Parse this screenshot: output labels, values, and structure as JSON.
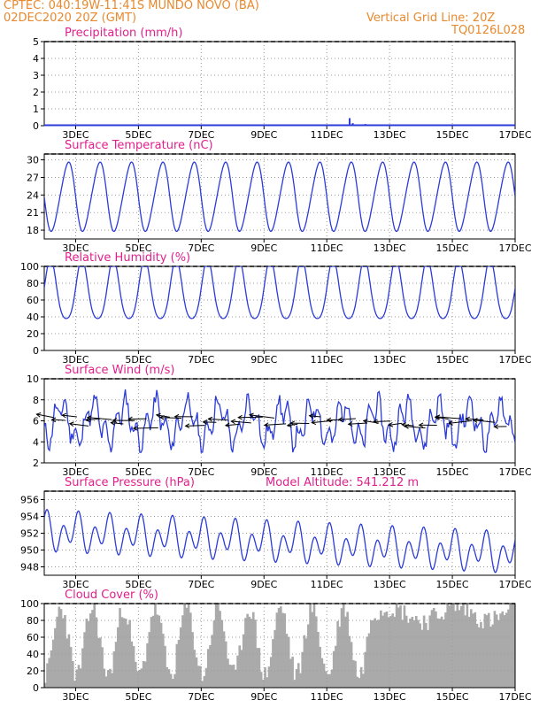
{
  "header": {
    "line1": "CPTEC:   040:19W-11:41S   MUNDO NOVO (BA)",
    "line2": "02DEC2020 20Z (GMT)",
    "grid_note": "Vertical Grid Line: 20Z",
    "code": "TQ0126L028"
  },
  "x_tick_labels": [
    "3DEC",
    "5DEC",
    "7DEC",
    "9DEC",
    "11DEC",
    "13DEC",
    "15DEC",
    "17DEC"
  ],
  "colors": {
    "header": "#e8892e",
    "panel_title": "#e0208c",
    "series": "#2b3bd8",
    "cloud": "#aaaaaa",
    "grid": "#9a9a9a",
    "arrow": "#000000"
  },
  "chart_data": [
    {
      "id": "precip",
      "type": "bar",
      "title": "Precipitation (mm/h)",
      "xlim": [
        0,
        15
      ],
      "ylim": [
        0,
        5
      ],
      "yticks": [
        0,
        1,
        2,
        3,
        4,
        5
      ],
      "bars": [
        [
          9.7,
          0.45
        ],
        [
          9.8,
          0.15
        ],
        [
          10.2,
          0.1
        ],
        [
          14.2,
          0.08
        ],
        [
          2.5,
          0.04
        ]
      ]
    },
    {
      "id": "temp",
      "type": "line",
      "title": "Surface Temperature (nC)",
      "xlim": [
        0,
        15
      ],
      "ylim": [
        16.5,
        31
      ],
      "yticks": [
        18,
        21,
        24,
        27,
        30
      ],
      "model": {
        "min": 18,
        "max": 29.5,
        "peak_phase": 0.0
      }
    },
    {
      "id": "rh",
      "type": "line",
      "title": "Relative Humidity (%)",
      "xlim": [
        0,
        15
      ],
      "ylim": [
        0,
        100
      ],
      "yticks": [
        0,
        20,
        40,
        60,
        80,
        100
      ],
      "model": {
        "min": 32,
        "max": 100
      }
    },
    {
      "id": "wind",
      "type": "line",
      "title": "Surface Wind (m/s)",
      "xlim": [
        0,
        15
      ],
      "ylim": [
        2,
        10
      ],
      "yticks": [
        2,
        4,
        6,
        8,
        10
      ],
      "model": {
        "min": 3,
        "max": 9,
        "mean": 5.8
      }
    },
    {
      "id": "pres",
      "type": "line",
      "title": "Surface Pressure (hPa)",
      "extra_label": "Model Altitude: 541.212 m",
      "xlim": [
        0,
        15
      ],
      "ylim": [
        947,
        957
      ],
      "yticks": [
        948,
        950,
        952,
        954,
        956
      ],
      "model": {
        "start_mean": 952,
        "end_mean": 949.5,
        "amplitude": 2.5
      }
    },
    {
      "id": "cloud",
      "type": "area",
      "title": "Cloud Cover (%)",
      "xlim": [
        0,
        15
      ],
      "ylim": [
        0,
        100
      ],
      "yticks": [
        0,
        20,
        40,
        60,
        80,
        100
      ]
    }
  ]
}
